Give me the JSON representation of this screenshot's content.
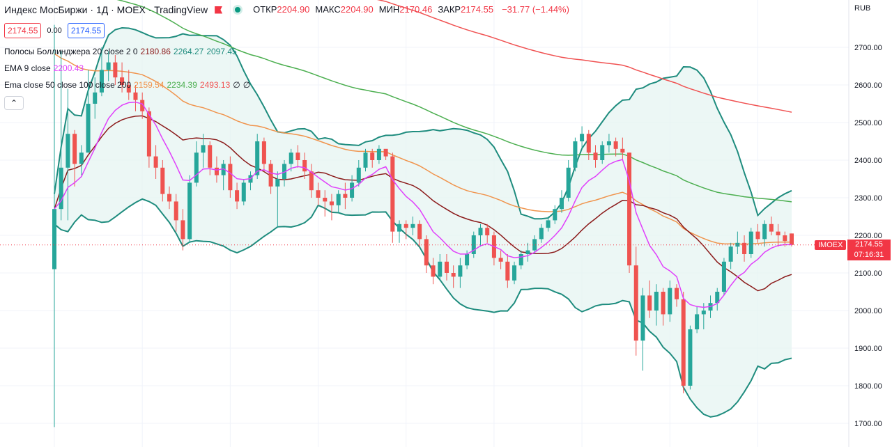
{
  "header": {
    "title": "Индекс МосБиржи · 1Д · MOEX · TradingView",
    "ohlc": [
      {
        "label": "ОТКР",
        "value": "2204.90"
      },
      {
        "label": "МАКС",
        "value": "2204.90"
      },
      {
        "label": "МИН",
        "value": "2170.46"
      },
      {
        "label": "ЗАКР",
        "value": "2174.55"
      }
    ],
    "change": "−31.77 (−1.44%)",
    "bid": "2174.55",
    "spread": "0.00",
    "ask": "2174.55"
  },
  "indicators": {
    "bb": {
      "label": "Полосы Боллинджера 20 close 2 0",
      "basis": "2180.86",
      "upper": "2264.27",
      "lower": "2097.45"
    },
    "ema9": {
      "label": "EMA 9 close",
      "value": "2200.43"
    },
    "ema_multi": {
      "label": "Ema close 50 close 100 close 200",
      "v50": "2159.54",
      "v100": "2234.39",
      "v200": "2493.13",
      "x1": "∅",
      "x2": "∅"
    }
  },
  "collapse_icon": "⌃",
  "price_tag": {
    "symbol": "IMOEX",
    "price": "2174.55",
    "countdown": "07:16:31"
  },
  "axis_currency": "RUB",
  "colors": {
    "up": "#26a69a",
    "down": "#ef5350",
    "bb": "#1e8c7e",
    "bb_fill": "#e6f4f1",
    "ema9": "#e040fb",
    "bb_basis": "#8b1a1a",
    "ema50": "#f0944d",
    "ema100": "#4caf50",
    "ema200": "#f05252",
    "last_line": "#f23645"
  },
  "chart_data": {
    "type": "candlestick",
    "ylim": [
      1670,
      2800
    ],
    "y_ticks": [
      1700,
      1800,
      1900,
      2000,
      2100,
      2200,
      2300,
      2400,
      2500,
      2600,
      2700
    ],
    "last_price": 2174.55,
    "ohlc": [
      [
        2110,
        2760,
        1690,
        2270
      ],
      [
        2270,
        2690,
        2240,
        2380
      ],
      [
        2380,
        2590,
        2240,
        2470
      ],
      [
        2470,
        2480,
        2330,
        2390
      ],
      [
        2390,
        2440,
        2360,
        2420
      ],
      [
        2420,
        2640,
        2420,
        2550
      ],
      [
        2550,
        2620,
        2510,
        2580
      ],
      [
        2580,
        2700,
        2570,
        2640
      ],
      [
        2640,
        2690,
        2610,
        2660
      ],
      [
        2660,
        2680,
        2600,
        2620
      ],
      [
        2620,
        2660,
        2580,
        2600
      ],
      [
        2600,
        2640,
        2560,
        2580
      ],
      [
        2580,
        2600,
        2530,
        2560
      ],
      [
        2560,
        2580,
        2510,
        2530
      ],
      [
        2530,
        2540,
        2380,
        2410
      ],
      [
        2410,
        2440,
        2350,
        2380
      ],
      [
        2380,
        2400,
        2290,
        2310
      ],
      [
        2310,
        2330,
        2270,
        2290
      ],
      [
        2290,
        2310,
        2210,
        2240
      ],
      [
        2240,
        2270,
        2160,
        2190
      ],
      [
        2190,
        2360,
        2180,
        2340
      ],
      [
        2340,
        2450,
        2330,
        2420
      ],
      [
        2420,
        2470,
        2380,
        2440
      ],
      [
        2440,
        2450,
        2360,
        2380
      ],
      [
        2380,
        2410,
        2340,
        2360
      ],
      [
        2360,
        2400,
        2320,
        2390
      ],
      [
        2390,
        2410,
        2300,
        2320
      ],
      [
        2320,
        2340,
        2270,
        2290
      ],
      [
        2290,
        2350,
        2280,
        2340
      ],
      [
        2340,
        2370,
        2320,
        2360
      ],
      [
        2360,
        2470,
        2350,
        2450
      ],
      [
        2450,
        2460,
        2370,
        2390
      ],
      [
        2390,
        2400,
        2310,
        2330
      ],
      [
        2330,
        2370,
        2220,
        2350
      ],
      [
        2350,
        2400,
        2330,
        2390
      ],
      [
        2390,
        2430,
        2370,
        2420
      ],
      [
        2420,
        2440,
        2380,
        2400
      ],
      [
        2400,
        2420,
        2350,
        2370
      ],
      [
        2370,
        2390,
        2300,
        2320
      ],
      [
        2320,
        2340,
        2280,
        2300
      ],
      [
        2300,
        2320,
        2250,
        2290
      ],
      [
        2290,
        2310,
        2240,
        2280
      ],
      [
        2280,
        2320,
        2260,
        2310
      ],
      [
        2310,
        2340,
        2270,
        2300
      ],
      [
        2300,
        2360,
        2290,
        2340
      ],
      [
        2340,
        2400,
        2330,
        2380
      ],
      [
        2380,
        2430,
        2370,
        2420
      ],
      [
        2420,
        2430,
        2380,
        2400
      ],
      [
        2400,
        2440,
        2390,
        2430
      ],
      [
        2430,
        2420,
        2400,
        2410
      ],
      [
        2410,
        2420,
        2180,
        2210
      ],
      [
        2210,
        2240,
        2180,
        2230
      ],
      [
        2230,
        2240,
        2190,
        2220
      ],
      [
        2220,
        2250,
        2200,
        2230
      ],
      [
        2230,
        2240,
        2170,
        2190
      ],
      [
        2190,
        2200,
        2100,
        2120
      ],
      [
        2120,
        2140,
        2070,
        2090
      ],
      [
        2090,
        2150,
        2080,
        2130
      ],
      [
        2130,
        2150,
        2080,
        2100
      ],
      [
        2100,
        2120,
        2060,
        2090
      ],
      [
        2090,
        2140,
        2060,
        2120
      ],
      [
        2120,
        2160,
        2110,
        2150
      ],
      [
        2150,
        2210,
        2140,
        2200
      ],
      [
        2200,
        2230,
        2170,
        2220
      ],
      [
        2220,
        2230,
        2180,
        2200
      ],
      [
        2200,
        2210,
        2120,
        2140
      ],
      [
        2140,
        2160,
        2110,
        2130
      ],
      [
        2130,
        2150,
        2060,
        2080
      ],
      [
        2080,
        2130,
        2070,
        2120
      ],
      [
        2120,
        2160,
        2110,
        2150
      ],
      [
        2150,
        2180,
        2130,
        2160
      ],
      [
        2160,
        2200,
        2150,
        2190
      ],
      [
        2190,
        2230,
        2180,
        2220
      ],
      [
        2220,
        2250,
        2210,
        2240
      ],
      [
        2240,
        2280,
        2230,
        2270
      ],
      [
        2270,
        2320,
        2260,
        2300
      ],
      [
        2300,
        2400,
        2290,
        2380
      ],
      [
        2380,
        2460,
        2370,
        2450
      ],
      [
        2450,
        2490,
        2430,
        2470
      ],
      [
        2470,
        2480,
        2400,
        2420
      ],
      [
        2420,
        2440,
        2380,
        2400
      ],
      [
        2400,
        2450,
        2390,
        2440
      ],
      [
        2440,
        2470,
        2420,
        2450
      ],
      [
        2450,
        2460,
        2410,
        2430
      ],
      [
        2430,
        2460,
        2400,
        2420
      ],
      [
        2420,
        2420,
        2100,
        2120
      ],
      [
        2120,
        2170,
        1880,
        1920
      ],
      [
        1920,
        2060,
        1840,
        2040
      ],
      [
        2040,
        2080,
        1980,
        2000
      ],
      [
        2000,
        2070,
        1960,
        2050
      ],
      [
        2050,
        2060,
        1960,
        1990
      ],
      [
        1990,
        2080,
        1970,
        2060
      ],
      [
        2060,
        2070,
        2010,
        2030
      ],
      [
        2030,
        2050,
        1780,
        1800
      ],
      [
        1800,
        1960,
        1790,
        1950
      ],
      [
        1950,
        2010,
        1940,
        1990
      ],
      [
        1990,
        2020,
        1950,
        2000
      ],
      [
        2000,
        2040,
        1980,
        2020
      ],
      [
        2020,
        2060,
        2000,
        2050
      ],
      [
        2050,
        2140,
        2040,
        2130
      ],
      [
        2130,
        2180,
        2110,
        2170
      ],
      [
        2170,
        2210,
        2150,
        2180
      ],
      [
        2180,
        2200,
        2130,
        2150
      ],
      [
        2150,
        2220,
        2140,
        2210
      ],
      [
        2210,
        2230,
        2180,
        2190
      ],
      [
        2190,
        2240,
        2170,
        2230
      ],
      [
        2230,
        2250,
        2200,
        2210
      ],
      [
        2210,
        2230,
        2170,
        2200
      ],
      [
        2200,
        2210,
        2170,
        2185
      ],
      [
        2204.9,
        2204.9,
        2170.46,
        2174.55
      ]
    ]
  }
}
